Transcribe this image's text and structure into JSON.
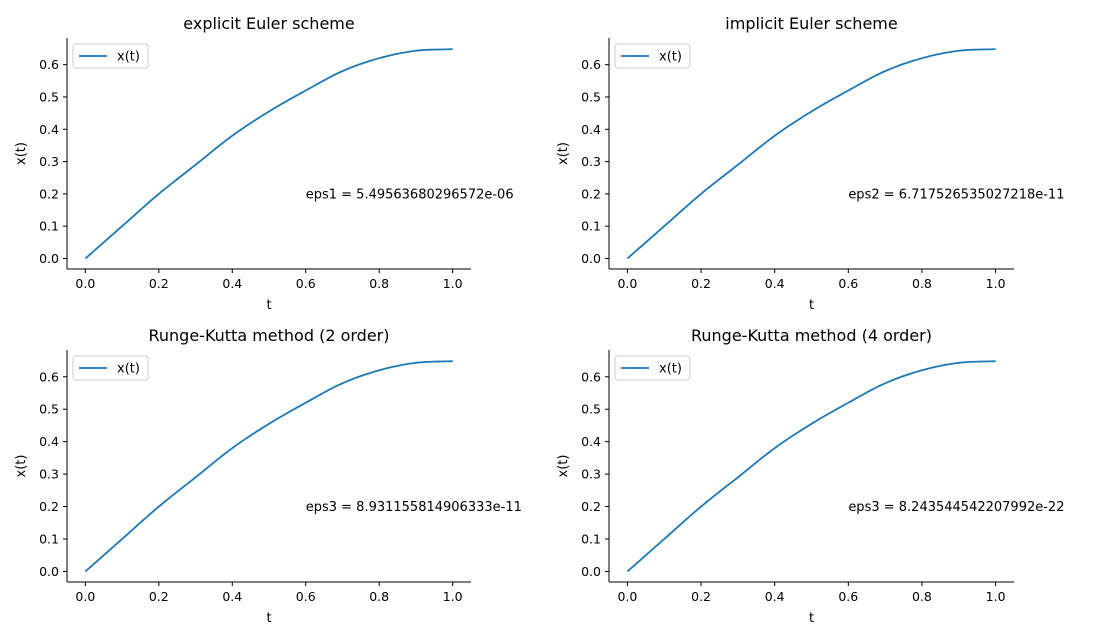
{
  "chart_data": [
    {
      "type": "line",
      "title": "explicit Euler scheme",
      "xlabel": "t",
      "ylabel": "x(t)",
      "xlim": [
        -0.05,
        1.05
      ],
      "ylim": [
        -0.0325,
        0.6825
      ],
      "xticks": [
        0.0,
        0.2,
        0.4,
        0.6,
        0.8,
        1.0
      ],
      "xtick_labels": [
        "0.0",
        "0.2",
        "0.4",
        "0.6",
        "0.8",
        "1.0"
      ],
      "yticks": [
        0.0,
        0.1,
        0.2,
        0.3,
        0.4,
        0.5,
        0.6
      ],
      "ytick_labels": [
        "0.0",
        "0.1",
        "0.2",
        "0.3",
        "0.4",
        "0.5",
        "0.6"
      ],
      "legend": {
        "placement": "upper-left",
        "entries": [
          "x(t)"
        ]
      },
      "series": [
        {
          "name": "x(t)",
          "color": "#1f77b4",
          "x": [
            0.0,
            0.1,
            0.2,
            0.3,
            0.4,
            0.5,
            0.6,
            0.7,
            0.8,
            0.9,
            1.0
          ],
          "y": [
            0.0,
            0.1,
            0.2,
            0.29,
            0.38,
            0.455,
            0.52,
            0.58,
            0.62,
            0.643,
            0.648
          ]
        }
      ],
      "annotation": {
        "text": "eps1 = 5.49563680296572e-06",
        "x": 0.6,
        "y": 0.2
      }
    },
    {
      "type": "line",
      "title": "implicit Euler scheme",
      "xlabel": "t",
      "ylabel": "x(t)",
      "xlim": [
        -0.05,
        1.05
      ],
      "ylim": [
        -0.0325,
        0.6825
      ],
      "xticks": [
        0.0,
        0.2,
        0.4,
        0.6,
        0.8,
        1.0
      ],
      "xtick_labels": [
        "0.0",
        "0.2",
        "0.4",
        "0.6",
        "0.8",
        "1.0"
      ],
      "yticks": [
        0.0,
        0.1,
        0.2,
        0.3,
        0.4,
        0.5,
        0.6
      ],
      "ytick_labels": [
        "0.0",
        "0.1",
        "0.2",
        "0.3",
        "0.4",
        "0.5",
        "0.6"
      ],
      "legend": {
        "placement": "upper-left",
        "entries": [
          "x(t)"
        ]
      },
      "series": [
        {
          "name": "x(t)",
          "color": "#1f77b4",
          "x": [
            0.0,
            0.1,
            0.2,
            0.3,
            0.4,
            0.5,
            0.6,
            0.7,
            0.8,
            0.9,
            1.0
          ],
          "y": [
            0.0,
            0.1,
            0.2,
            0.29,
            0.38,
            0.455,
            0.52,
            0.58,
            0.62,
            0.643,
            0.648
          ]
        }
      ],
      "annotation": {
        "text": "eps2 = 6.717526535027218e-11",
        "x": 0.6,
        "y": 0.2
      }
    },
    {
      "type": "line",
      "title": "Runge-Kutta method (2 order)",
      "xlabel": "t",
      "ylabel": "x(t)",
      "xlim": [
        -0.05,
        1.05
      ],
      "ylim": [
        -0.0325,
        0.6825
      ],
      "xticks": [
        0.0,
        0.2,
        0.4,
        0.6,
        0.8,
        1.0
      ],
      "xtick_labels": [
        "0.0",
        "0.2",
        "0.4",
        "0.6",
        "0.8",
        "1.0"
      ],
      "yticks": [
        0.0,
        0.1,
        0.2,
        0.3,
        0.4,
        0.5,
        0.6
      ],
      "ytick_labels": [
        "0.0",
        "0.1",
        "0.2",
        "0.3",
        "0.4",
        "0.5",
        "0.6"
      ],
      "legend": {
        "placement": "upper-left",
        "entries": [
          "x(t)"
        ]
      },
      "series": [
        {
          "name": "x(t)",
          "color": "#1f77b4",
          "x": [
            0.0,
            0.1,
            0.2,
            0.3,
            0.4,
            0.5,
            0.6,
            0.7,
            0.8,
            0.9,
            1.0
          ],
          "y": [
            0.0,
            0.1,
            0.2,
            0.29,
            0.38,
            0.455,
            0.52,
            0.58,
            0.62,
            0.643,
            0.648
          ]
        }
      ],
      "annotation": {
        "text": "eps3 = 8.931155814906333e-11",
        "x": 0.6,
        "y": 0.2
      }
    },
    {
      "type": "line",
      "title": "Runge-Kutta method (4 order)",
      "xlabel": "t",
      "ylabel": "x(t)",
      "xlim": [
        -0.05,
        1.05
      ],
      "ylim": [
        -0.0325,
        0.6825
      ],
      "xticks": [
        0.0,
        0.2,
        0.4,
        0.6,
        0.8,
        1.0
      ],
      "xtick_labels": [
        "0.0",
        "0.2",
        "0.4",
        "0.6",
        "0.8",
        "1.0"
      ],
      "yticks": [
        0.0,
        0.1,
        0.2,
        0.3,
        0.4,
        0.5,
        0.6
      ],
      "ytick_labels": [
        "0.0",
        "0.1",
        "0.2",
        "0.3",
        "0.4",
        "0.5",
        "0.6"
      ],
      "legend": {
        "placement": "upper-left",
        "entries": [
          "x(t)"
        ]
      },
      "series": [
        {
          "name": "x(t)",
          "color": "#1f77b4",
          "x": [
            0.0,
            0.1,
            0.2,
            0.3,
            0.4,
            0.5,
            0.6,
            0.7,
            0.8,
            0.9,
            1.0
          ],
          "y": [
            0.0,
            0.1,
            0.2,
            0.29,
            0.38,
            0.455,
            0.52,
            0.58,
            0.62,
            0.643,
            0.648
          ]
        }
      ],
      "annotation": {
        "text": "eps3 = 8.243544542207992e-22",
        "x": 0.6,
        "y": 0.2
      }
    }
  ]
}
